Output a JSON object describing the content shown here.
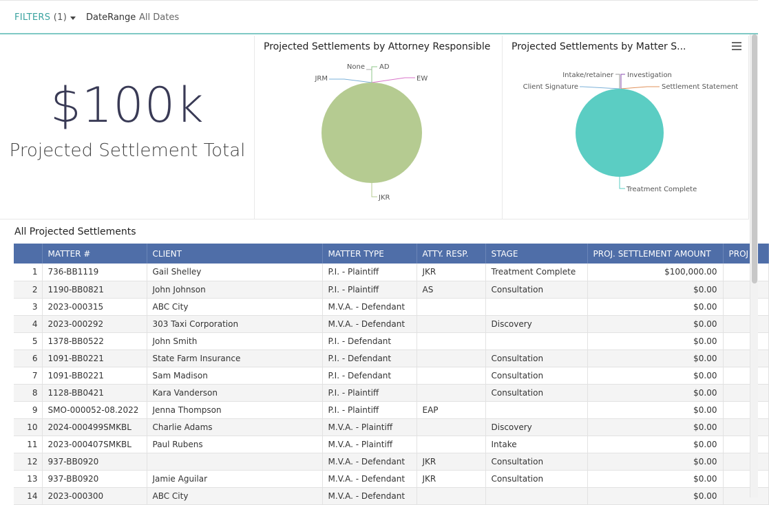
{
  "filters": {
    "label": "FILTERS",
    "count": "(1)",
    "field": "DateRange",
    "value": "All Dates"
  },
  "kpi": {
    "value": "$100k",
    "label": "Projected Settlement Total"
  },
  "charts": [
    {
      "title": "Projected Settlements by Attorney Responsible",
      "chart_data": {
        "type": "pie",
        "title": "Projected Settlements by Attorney Responsible",
        "slices": [
          {
            "label": "JKR",
            "value": 100000,
            "color": "#b5cb91"
          },
          {
            "label": "JRM",
            "value": 0,
            "color": "#7ab0d8"
          },
          {
            "label": "None",
            "value": 0,
            "color": "#aaaaaa"
          },
          {
            "label": "AD",
            "value": 0,
            "color": "#8fc78a"
          },
          {
            "label": "EW",
            "value": 0,
            "color": "#d873c9"
          }
        ]
      }
    },
    {
      "title": "Projected Settlements by Matter S...",
      "chart_data": {
        "type": "pie",
        "title": "Projected Settlements by Matter S...",
        "slices": [
          {
            "label": "Treatment Complete",
            "value": 100000,
            "color": "#5bcdc3"
          },
          {
            "label": "Client Signature",
            "value": 0,
            "color": "#7ab0d8"
          },
          {
            "label": "Intake/retainer",
            "value": 0,
            "color": "#999999"
          },
          {
            "label": "Investigation",
            "value": 0,
            "color": "#8a4cb0"
          },
          {
            "label": "Settlement Statement",
            "value": 0,
            "color": "#e0905a"
          }
        ]
      }
    }
  ],
  "table": {
    "title": "All Projected Settlements",
    "columns": [
      "",
      "MATTER #",
      "CLIENT",
      "MATTER TYPE",
      "ATTY. RESP.",
      "STAGE",
      "PROJ. SETTLEMENT AMOUNT",
      "PROJ"
    ],
    "rows": [
      [
        "1",
        "736-BB1119",
        "Gail Shelley",
        "P.I. - Plaintiff",
        "JKR",
        "Treatment Complete",
        "$100,000.00"
      ],
      [
        "2",
        "1190-BB0821",
        "John Johnson",
        "P.I. - Plaintiff",
        "AS",
        "Consultation",
        "$0.00"
      ],
      [
        "3",
        "2023-000315",
        "ABC City",
        "M.V.A. - Defendant",
        "",
        "",
        "$0.00"
      ],
      [
        "4",
        "2023-000292",
        "303 Taxi Corporation",
        "M.V.A. - Defendant",
        "",
        "Discovery",
        "$0.00"
      ],
      [
        "5",
        "1378-BB0522",
        "John Smith",
        "P.I. - Defendant",
        "",
        "",
        "$0.00"
      ],
      [
        "6",
        "1091-BB0221",
        "State Farm Insurance",
        "P.I. - Defendant",
        "",
        "Consultation",
        "$0.00"
      ],
      [
        "7",
        "1091-BB0221",
        "Sam Madison",
        "P.I. - Defendant",
        "",
        "Consultation",
        "$0.00"
      ],
      [
        "8",
        "1128-BB0421",
        "Kara Vanderson",
        "P.I. - Plaintiff",
        "",
        "Consultation",
        "$0.00"
      ],
      [
        "9",
        "SMO-000052-08.2022",
        "Jenna Thompson",
        "P.I. - Plaintiff",
        "EAP",
        "",
        "$0.00"
      ],
      [
        "10",
        "2024-000499SMKBL",
        "Charlie Adams",
        "M.V.A. - Plaintiff",
        "",
        "Discovery",
        "$0.00"
      ],
      [
        "11",
        "2023-000407SMKBL",
        "Paul Rubens",
        "M.V.A. - Plaintiff",
        "",
        "Intake",
        "$0.00"
      ],
      [
        "12",
        "937-BB0920",
        "",
        "M.V.A. - Defendant",
        "JKR",
        "Consultation",
        "$0.00"
      ],
      [
        "13",
        "937-BB0920",
        "Jamie Aguilar",
        "M.V.A. - Defendant",
        "JKR",
        "Consultation",
        "$0.00"
      ],
      [
        "14",
        "2023-000300",
        "ABC City",
        "M.V.A. - Defendant",
        "",
        "",
        "$0.00"
      ]
    ]
  }
}
